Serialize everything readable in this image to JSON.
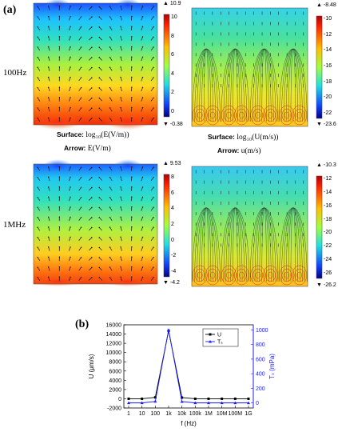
{
  "panel_a": {
    "letter": "(a)",
    "row_labels": [
      "100Hz",
      "1MHz"
    ],
    "captions": {
      "surface_prefix": "Surface:",
      "arrow_prefix": "Arrow:",
      "surface_e": "log₁₀(E(V/m))",
      "arrow_e": "E(V/m)",
      "surface_u": "log₁₀(U(m/s))",
      "arrow_u": "u(m/s)"
    },
    "maps": [
      {
        "id": "e-100hz",
        "max_label": "▲ 10.9",
        "min_label": "▼ -0.38",
        "ticks": [
          "10",
          "8",
          "6",
          "4",
          "2",
          "0"
        ]
      },
      {
        "id": "u-100hz",
        "max_label": "▲ -8.48",
        "min_label": "▼ -23.6",
        "ticks": [
          "-10",
          "-12",
          "-14",
          "-16",
          "-18",
          "-20",
          "-22"
        ]
      },
      {
        "id": "e-1mhz",
        "max_label": "▲ 9.53",
        "min_label": "▼ -4.2",
        "ticks": [
          "8",
          "6",
          "4",
          "2",
          "0",
          "-2",
          "-4"
        ]
      },
      {
        "id": "u-1mhz",
        "max_label": "▲ -10.3",
        "min_label": "▼ -26.2",
        "ticks": [
          "-12",
          "-14",
          "-16",
          "-18",
          "-20",
          "-22",
          "-24",
          "-26"
        ]
      }
    ]
  },
  "panel_b": {
    "letter": "(b)"
  },
  "chart_data": {
    "type": "line",
    "xlabel": "f (Hz)",
    "ylabel": "U (μm/s)",
    "y2label": "Tₛ (mPa)",
    "x_ticks": [
      "1",
      "10",
      "100",
      "1k",
      "10k",
      "100k",
      "1M",
      "10M",
      "100M",
      "1G"
    ],
    "ylim": [
      -2000,
      16000
    ],
    "y_ticks": [
      "-2000",
      "0",
      "2000",
      "4000",
      "6000",
      "8000",
      "10000",
      "12000",
      "14000",
      "16000"
    ],
    "y2lim": [
      -70,
      1070
    ],
    "y2_ticks": [
      "0",
      "200",
      "400",
      "600",
      "800",
      "1000"
    ],
    "grid": false,
    "legend_position": "top-right",
    "legend_labels": [
      "U",
      "Tₛ"
    ],
    "series": [
      {
        "name": "U",
        "axis": "left",
        "color": "#000000",
        "marker": "square",
        "values": [
          0,
          0,
          300,
          14700,
          250,
          0,
          0,
          0,
          0,
          0
        ]
      },
      {
        "name": "Tₛ",
        "axis": "right",
        "color": "#1a1aff",
        "marker": "triangle",
        "values": [
          0,
          0,
          20,
          1000,
          18,
          0,
          0,
          0,
          0,
          0
        ]
      }
    ]
  }
}
